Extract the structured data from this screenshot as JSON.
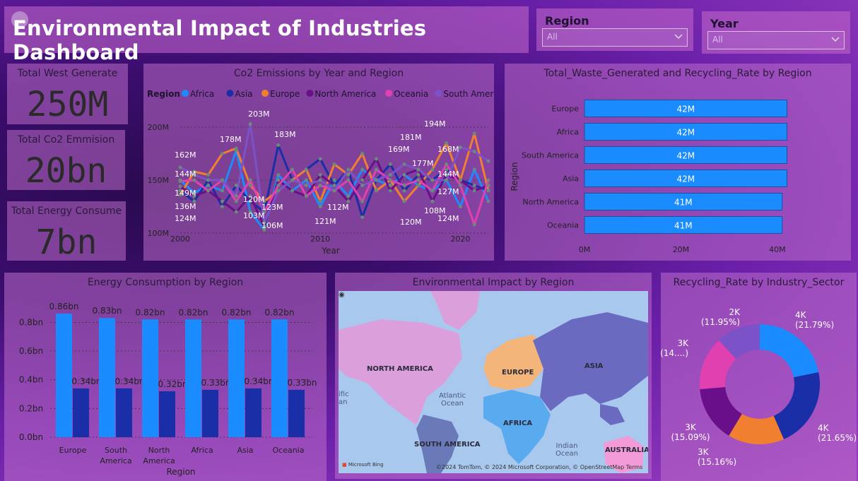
{
  "header": {
    "title": "Environmental Impact of Industries Dashboard"
  },
  "slicers": [
    {
      "label": "Region",
      "value": "All"
    },
    {
      "label": "Year",
      "value": "All"
    }
  ],
  "cards": [
    {
      "label": "Total West Generate",
      "value": "250M"
    },
    {
      "label": "Total Co2 Emmision",
      "value": "20bn"
    },
    {
      "label": "Total Energy Consume",
      "value": "7bn"
    }
  ],
  "co2_chart": {
    "title": "Co2 Emissions by Year and Region",
    "legend_title": "Region",
    "xlabel": "Year",
    "colors": {
      "Africa": "#1a8cff",
      "Asia": "#1a2ea8",
      "Europe": "#f08030",
      "North America": "#6a0f8a",
      "Oceania": "#e040b0",
      "South America": "#7b52c8"
    }
  },
  "waste_chart": {
    "title": "Total_Waste_Generated and Recycling_Rate by Region",
    "ylabel": "Region"
  },
  "energy_chart": {
    "title": "Energy Consumption by Region",
    "xlabel": "Region"
  },
  "map": {
    "title": "Environmental Impact by Region",
    "labels": {
      "north_america": "NORTH AMERICA",
      "europe": "EUROPE",
      "asia": "ASIA",
      "africa": "AFRICA",
      "south_america": "SOUTH AMERICA",
      "australia": "AUSTRALIA"
    },
    "oceans": {
      "atlantic": "Atlantic\nOcean",
      "indian": "Indian\nOcean",
      "pacific": "ific\nan"
    },
    "brand": "Microsoft Bing",
    "copyright": "©2024 TomTom, © 2024 Microsoft Corporation, © OpenStreetMap  Terms"
  },
  "donut": {
    "title": "Recycling_Rate by Industry_Sector"
  },
  "chart_data": [
    {
      "type": "line",
      "title": "Co2 Emissions by Year and Region",
      "xlabel": "Year",
      "ylabel": "",
      "xlim": [
        2000,
        2022
      ],
      "ylim": [
        100,
        200
      ],
      "xticks": [
        "2000",
        "2010",
        "2020"
      ],
      "yticks": [
        "100M",
        "150M",
        "200M"
      ],
      "grid": true,
      "legend": "top",
      "x": [
        2000,
        2001,
        2002,
        2003,
        2004,
        2005,
        2006,
        2007,
        2008,
        2009,
        2010,
        2011,
        2012,
        2013,
        2014,
        2015,
        2016,
        2017,
        2018,
        2019,
        2020,
        2021,
        2022
      ],
      "series": [
        {
          "name": "Africa",
          "values": [
            150,
            138,
            145,
            140,
            178,
            120,
            103,
            155,
            140,
            150,
            125,
            150,
            135,
            160,
            150,
            145,
            155,
            145,
            140,
            150,
            125,
            160,
            130
          ]
        },
        {
          "name": "Asia",
          "values": [
            140,
            130,
            150,
            125,
            145,
            130,
            120,
            183,
            150,
            160,
            170,
            145,
            160,
            115,
            150,
            165,
            140,
            155,
            150,
            160,
            150,
            145,
            140
          ]
        },
        {
          "name": "Europe",
          "values": [
            136,
            158,
            155,
            175,
            180,
            145,
            130,
            140,
            150,
            160,
            130,
            165,
            155,
            175,
            140,
            150,
            130,
            145,
            160,
            185,
            150,
            194,
            140
          ]
        },
        {
          "name": "North America",
          "values": [
            144,
            135,
            140,
            130,
            120,
            135,
            106,
            150,
            140,
            135,
            155,
            145,
            130,
            150,
            170,
            140,
            155,
            160,
            130,
            155,
            150,
            140,
            145
          ]
        },
        {
          "name": "Oceania",
          "values": [
            149,
            150,
            140,
            150,
            130,
            150,
            120,
            145,
            160,
            135,
            145,
            140,
            150,
            130,
            160,
            150,
            145,
            150,
            140,
            165,
            145,
            108,
            150
          ]
        },
        {
          "name": "South America",
          "values": [
            162,
            155,
            150,
            150,
            135,
            203,
            110,
            140,
            150,
            145,
            150,
            140,
            160,
            145,
            150,
            155,
            165,
            160,
            150,
            150,
            181,
            177,
            168
          ]
        }
      ],
      "data_labels": [
        "203M",
        "178M",
        "183M",
        "162M",
        "144M",
        "149M",
        "136M",
        "124M",
        "120M",
        "103M",
        "106M",
        "123M",
        "112M",
        "121M",
        "169M",
        "181M",
        "194M",
        "168M",
        "177M",
        "144M",
        "127M",
        "108M",
        "124M",
        "120M"
      ]
    },
    {
      "type": "bar",
      "title": "Total_Waste_Generated and Recycling_Rate by Region",
      "xlabel": "",
      "ylabel": "Region",
      "orientation": "horizontal",
      "categories": [
        "Europe",
        "Africa",
        "South America",
        "Asia",
        "North America",
        "Oceania"
      ],
      "values": [
        42,
        42,
        42,
        42,
        41,
        41
      ],
      "value_labels": [
        "42M",
        "42M",
        "42M",
        "42M",
        "41M",
        "41M"
      ],
      "xlim": [
        0,
        45
      ],
      "xticks": [
        "0M",
        "20M",
        "40M"
      ],
      "unit": "M"
    },
    {
      "type": "bar",
      "title": "Energy Consumption by Region",
      "xlabel": "Region",
      "ylabel": "",
      "categories": [
        "Europe",
        "South America",
        "North America",
        "Africa",
        "Asia",
        "Oceania"
      ],
      "ylim": [
        0,
        0.9
      ],
      "yticks": [
        "0.0bn",
        "0.2bn",
        "0.4bn",
        "0.6bn",
        "0.8bn"
      ],
      "series": [
        {
          "values": [
            0.86,
            0.83,
            0.82,
            0.82,
            0.82,
            0.82
          ],
          "labels": [
            "0.86bn",
            "0.83bn",
            "0.82bn",
            "0.82bn",
            "0.82bn",
            "0.82bn"
          ]
        },
        {
          "values": [
            0.34,
            0.34,
            0.32,
            0.33,
            0.34,
            0.33
          ],
          "labels": [
            "0.34bn",
            "0.34bn",
            "0.32bn",
            "0.33bn",
            "0.34bn",
            "0.33bn"
          ]
        }
      ]
    },
    {
      "type": "pie",
      "title": "Recycling_Rate by Industry_Sector",
      "donut": true,
      "slices": [
        {
          "label": "4K",
          "pct": "(21.79%)",
          "value": 21.79,
          "color": "#1a8cff"
        },
        {
          "label": "4K",
          "pct": "(21.65%)",
          "value": 21.65,
          "color": "#1a2ea8"
        },
        {
          "label": "3K",
          "pct": "(15.16%)",
          "value": 15.16,
          "color": "#f08030"
        },
        {
          "label": "3K",
          "pct": "(15.09%)",
          "value": 15.09,
          "color": "#6a0f8a"
        },
        {
          "label": "3K",
          "pct": "(14....)",
          "value": 14.36,
          "color": "#e040b0"
        },
        {
          "label": "2K",
          "pct": "(11.95%)",
          "value": 11.95,
          "color": "#7b52c8"
        }
      ]
    }
  ]
}
